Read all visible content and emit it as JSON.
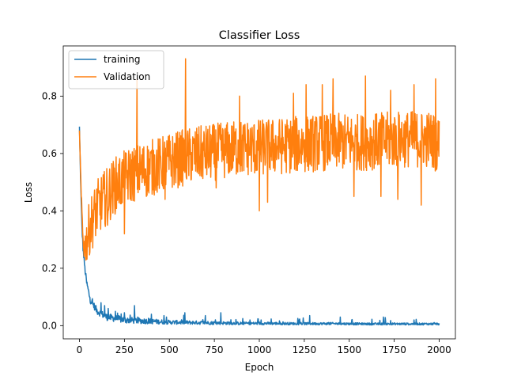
{
  "chart_data": {
    "type": "line",
    "title": "Classifier Loss",
    "xlabel": "Epoch",
    "ylabel": "Loss",
    "xlim": [
      -90,
      2090
    ],
    "ylim": [
      -0.046,
      0.975
    ],
    "xticks": [
      0,
      250,
      500,
      750,
      1000,
      1250,
      1500,
      1750,
      2000
    ],
    "xtick_labels": [
      "0",
      "250",
      "500",
      "750",
      "1000",
      "1250",
      "1500",
      "1750",
      "2000"
    ],
    "yticks": [
      0.0,
      0.2,
      0.4,
      0.6,
      0.8
    ],
    "ytick_labels": [
      "0.0",
      "0.2",
      "0.4",
      "0.6",
      "0.8"
    ],
    "grid": false,
    "legend_position": "top-left",
    "series": [
      {
        "name": "training",
        "color": "#1f77b4",
        "x": [
          0,
          5,
          10,
          15,
          20,
          30,
          40,
          50,
          60,
          80,
          100,
          125,
          150,
          200,
          250,
          300,
          400,
          500,
          600,
          700,
          800,
          900,
          1000,
          1200,
          1400,
          1600,
          1800,
          2000
        ],
        "y": [
          0.69,
          0.55,
          0.42,
          0.33,
          0.27,
          0.2,
          0.15,
          0.12,
          0.09,
          0.07,
          0.05,
          0.04,
          0.03,
          0.025,
          0.02,
          0.018,
          0.015,
          0.012,
          0.011,
          0.01,
          0.009,
          0.008,
          0.008,
          0.007,
          0.007,
          0.006,
          0.006,
          0.006
        ],
        "spikes": [
          [
            120,
            0.08
          ],
          [
            140,
            0.07
          ],
          [
            160,
            0.06
          ],
          [
            200,
            0.05
          ],
          [
            250,
            0.045
          ],
          [
            305,
            0.07
          ],
          [
            400,
            0.04
          ],
          [
            470,
            0.035
          ],
          [
            585,
            0.045
          ],
          [
            700,
            0.035
          ],
          [
            785,
            0.045
          ],
          [
            1010,
            0.02
          ],
          [
            1280,
            0.035
          ],
          [
            1450,
            0.03
          ],
          [
            1690,
            0.03
          ],
          [
            1860,
            0.02
          ]
        ]
      },
      {
        "name": "Validation",
        "color": "#ff7f0e",
        "x": [
          0,
          10,
          20,
          30,
          40,
          60,
          80,
          100,
          150,
          200,
          250,
          300,
          400,
          500,
          600,
          700,
          800,
          900,
          1000,
          1200,
          1400,
          1600,
          1800,
          1950,
          2000
        ],
        "y": [
          0.68,
          0.45,
          0.3,
          0.27,
          0.3,
          0.35,
          0.38,
          0.41,
          0.45,
          0.49,
          0.51,
          0.53,
          0.55,
          0.57,
          0.59,
          0.6,
          0.61,
          0.62,
          0.62,
          0.63,
          0.64,
          0.64,
          0.65,
          0.65,
          0.63
        ],
        "noise_amplitude": [
          0.0,
          0.02,
          0.04,
          0.06,
          0.08,
          0.1,
          0.1,
          0.1,
          0.1,
          0.1,
          0.1,
          0.1,
          0.1,
          0.1,
          0.1,
          0.1,
          0.1,
          0.1,
          0.1,
          0.1,
          0.1,
          0.1,
          0.1,
          0.1,
          0.1
        ],
        "spikes": [
          [
            590,
            0.93
          ],
          [
            320,
            0.86
          ],
          [
            1000,
            0.4
          ],
          [
            250,
            0.32
          ],
          [
            1260,
            0.84
          ],
          [
            1410,
            0.86
          ],
          [
            1590,
            0.87
          ],
          [
            1860,
            0.84
          ],
          [
            1900,
            0.42
          ],
          [
            1980,
            0.86
          ],
          [
            1770,
            0.44
          ],
          [
            1525,
            0.45
          ],
          [
            1675,
            0.45
          ],
          [
            1045,
            0.43
          ],
          [
            760,
            0.48
          ],
          [
            475,
            0.44
          ],
          [
            155,
            0.35
          ],
          [
            1350,
            0.84
          ],
          [
            1730,
            0.82
          ],
          [
            1190,
            0.81
          ],
          [
            890,
            0.8
          ]
        ]
      }
    ]
  }
}
